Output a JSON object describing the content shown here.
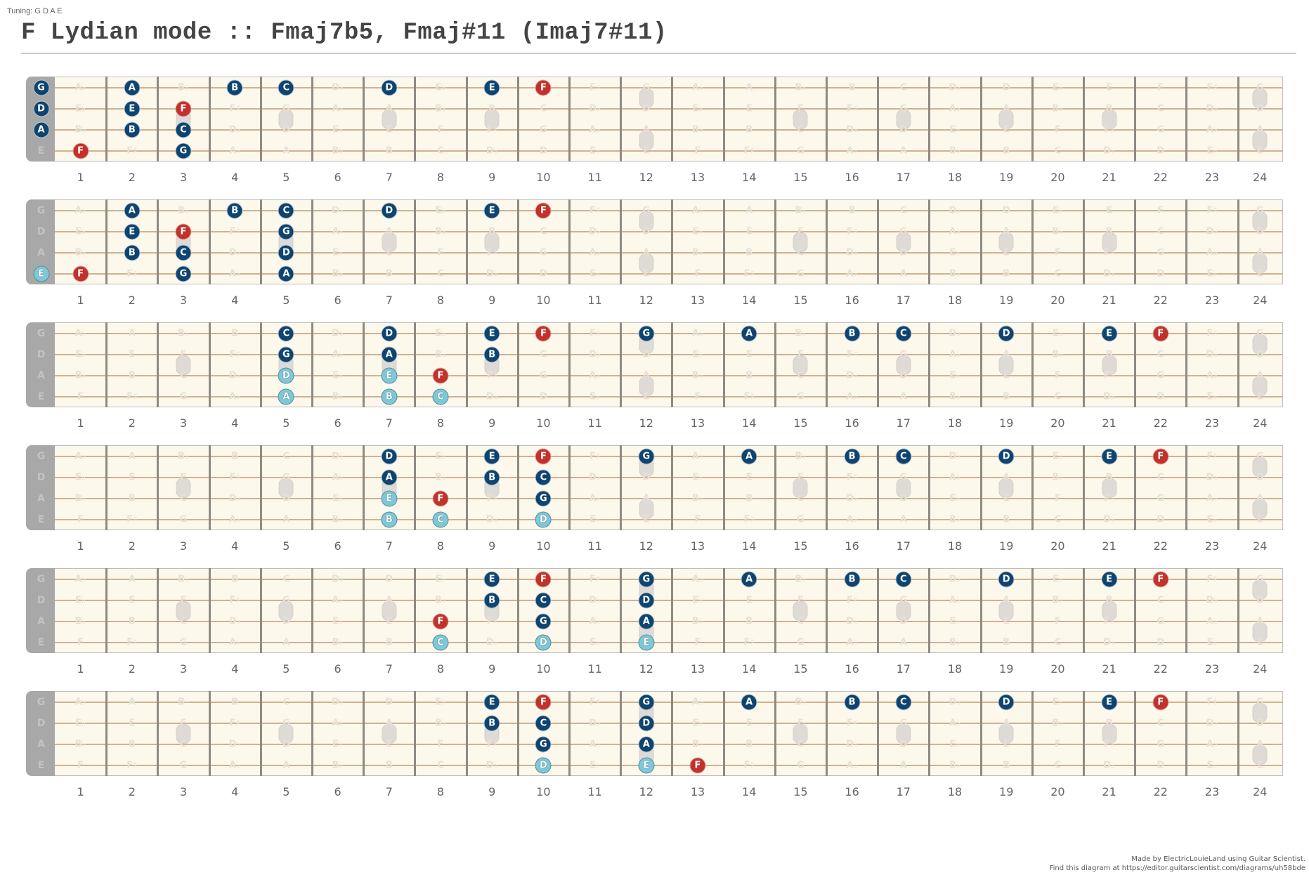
{
  "header": {
    "tuning_label": "Tuning: G D A E",
    "title": "F Lydian mode :: Fmaj7b5, Fmaj#11 (Imaj7#11)"
  },
  "footer": {
    "line1": "Made by ElectricLouieLand using Guitar Scientist.",
    "line2": "Find this diagram at https://editor.guitarscientist.com/diagrams/uh58bde"
  },
  "colors": {
    "scale_note": "#0d4470",
    "root_note": "#c2322b",
    "chord_tone_light": "#7fc8d8",
    "fretboard": "#fdf8ec",
    "string": "#d4b08e",
    "nut": "#a8a8a8"
  },
  "tuning": [
    "G",
    "D",
    "A",
    "E"
  ],
  "fret_numbers": [
    "1",
    "2",
    "3",
    "4",
    "5",
    "6",
    "7",
    "8",
    "9",
    "10",
    "11",
    "12",
    "13",
    "14",
    "15",
    "16",
    "17",
    "18",
    "19",
    "20",
    "21",
    "22",
    "23",
    "24"
  ],
  "inlays": {
    "single": [
      3,
      5,
      7,
      9,
      15,
      17,
      19,
      21
    ],
    "double": [
      12,
      24
    ]
  },
  "ghost_notes": {
    "G": [
      "A♭",
      "A",
      "B♭",
      "B",
      "C",
      "D♭",
      "D",
      "E♭",
      "E",
      "F",
      "F♯",
      "G",
      "A♭",
      "A",
      "B♭",
      "B",
      "C",
      "D♭",
      "D",
      "E♭",
      "E",
      "F",
      "F♯",
      "G"
    ],
    "D": [
      "E♭",
      "E",
      "F",
      "F♯",
      "G",
      "A♭",
      "A",
      "B♭",
      "B",
      "C",
      "D♭",
      "D",
      "E♭",
      "E",
      "F",
      "F♯",
      "G",
      "A♭",
      "A",
      "B♭",
      "B",
      "C",
      "D♭",
      "D"
    ],
    "A": [
      "B♭",
      "B",
      "C",
      "D♭",
      "D",
      "E♭",
      "E",
      "F",
      "F♯",
      "G",
      "A♭",
      "A",
      "B♭",
      "B",
      "C",
      "D♭",
      "D",
      "E♭",
      "E",
      "F",
      "F♯",
      "G",
      "A♭",
      "A"
    ],
    "E": [
      "F",
      "F♯",
      "G",
      "A♭",
      "A",
      "B♭",
      "B",
      "C",
      "D♭",
      "D",
      "E♭",
      "E",
      "F",
      "F♯",
      "G",
      "A♭",
      "A",
      "B♭",
      "B",
      "C",
      "D♭",
      "D",
      "E♭",
      "E"
    ]
  },
  "diagrams": [
    {
      "notes": [
        {
          "string": "G",
          "fret": 0,
          "label": "G",
          "type": "dark"
        },
        {
          "string": "D",
          "fret": 0,
          "label": "D",
          "type": "dark"
        },
        {
          "string": "A",
          "fret": 0,
          "label": "A",
          "type": "dark"
        },
        {
          "string": "G",
          "fret": 2,
          "label": "A",
          "type": "dark"
        },
        {
          "string": "G",
          "fret": 4,
          "label": "B",
          "type": "dark"
        },
        {
          "string": "G",
          "fret": 5,
          "label": "C",
          "type": "dark"
        },
        {
          "string": "G",
          "fret": 7,
          "label": "D",
          "type": "dark"
        },
        {
          "string": "G",
          "fret": 9,
          "label": "E",
          "type": "dark"
        },
        {
          "string": "G",
          "fret": 10,
          "label": "F",
          "type": "root"
        },
        {
          "string": "D",
          "fret": 2,
          "label": "E",
          "type": "dark"
        },
        {
          "string": "D",
          "fret": 3,
          "label": "F",
          "type": "root"
        },
        {
          "string": "A",
          "fret": 2,
          "label": "B",
          "type": "dark"
        },
        {
          "string": "A",
          "fret": 3,
          "label": "C",
          "type": "dark"
        },
        {
          "string": "E",
          "fret": 1,
          "label": "F",
          "type": "root"
        },
        {
          "string": "E",
          "fret": 3,
          "label": "G",
          "type": "dark"
        }
      ]
    },
    {
      "notes": [
        {
          "string": "E",
          "fret": 0,
          "label": "E",
          "type": "light"
        },
        {
          "string": "G",
          "fret": 2,
          "label": "A",
          "type": "dark"
        },
        {
          "string": "G",
          "fret": 4,
          "label": "B",
          "type": "dark"
        },
        {
          "string": "G",
          "fret": 5,
          "label": "C",
          "type": "dark"
        },
        {
          "string": "G",
          "fret": 7,
          "label": "D",
          "type": "dark"
        },
        {
          "string": "G",
          "fret": 9,
          "label": "E",
          "type": "dark"
        },
        {
          "string": "G",
          "fret": 10,
          "label": "F",
          "type": "root"
        },
        {
          "string": "D",
          "fret": 2,
          "label": "E",
          "type": "dark"
        },
        {
          "string": "D",
          "fret": 3,
          "label": "F",
          "type": "root"
        },
        {
          "string": "D",
          "fret": 5,
          "label": "G",
          "type": "dark"
        },
        {
          "string": "A",
          "fret": 2,
          "label": "B",
          "type": "dark"
        },
        {
          "string": "A",
          "fret": 3,
          "label": "C",
          "type": "dark"
        },
        {
          "string": "A",
          "fret": 5,
          "label": "D",
          "type": "dark"
        },
        {
          "string": "E",
          "fret": 1,
          "label": "F",
          "type": "root"
        },
        {
          "string": "E",
          "fret": 3,
          "label": "G",
          "type": "dark"
        },
        {
          "string": "E",
          "fret": 5,
          "label": "A",
          "type": "dark"
        }
      ]
    },
    {
      "notes": [
        {
          "string": "G",
          "fret": 5,
          "label": "C",
          "type": "dark"
        },
        {
          "string": "G",
          "fret": 7,
          "label": "D",
          "type": "dark"
        },
        {
          "string": "G",
          "fret": 9,
          "label": "E",
          "type": "dark"
        },
        {
          "string": "G",
          "fret": 10,
          "label": "F",
          "type": "root"
        },
        {
          "string": "G",
          "fret": 12,
          "label": "G",
          "type": "dark"
        },
        {
          "string": "G",
          "fret": 14,
          "label": "A",
          "type": "dark"
        },
        {
          "string": "G",
          "fret": 16,
          "label": "B",
          "type": "dark"
        },
        {
          "string": "G",
          "fret": 17,
          "label": "C",
          "type": "dark"
        },
        {
          "string": "G",
          "fret": 19,
          "label": "D",
          "type": "dark"
        },
        {
          "string": "G",
          "fret": 21,
          "label": "E",
          "type": "dark"
        },
        {
          "string": "G",
          "fret": 22,
          "label": "F",
          "type": "root"
        },
        {
          "string": "D",
          "fret": 5,
          "label": "G",
          "type": "dark"
        },
        {
          "string": "D",
          "fret": 7,
          "label": "A",
          "type": "dark"
        },
        {
          "string": "D",
          "fret": 9,
          "label": "B",
          "type": "dark"
        },
        {
          "string": "A",
          "fret": 5,
          "label": "D",
          "type": "light"
        },
        {
          "string": "A",
          "fret": 7,
          "label": "E",
          "type": "light"
        },
        {
          "string": "A",
          "fret": 8,
          "label": "F",
          "type": "root"
        },
        {
          "string": "E",
          "fret": 5,
          "label": "A",
          "type": "light"
        },
        {
          "string": "E",
          "fret": 7,
          "label": "B",
          "type": "light"
        },
        {
          "string": "E",
          "fret": 8,
          "label": "C",
          "type": "light"
        }
      ]
    },
    {
      "notes": [
        {
          "string": "G",
          "fret": 7,
          "label": "D",
          "type": "dark"
        },
        {
          "string": "G",
          "fret": 9,
          "label": "E",
          "type": "dark"
        },
        {
          "string": "G",
          "fret": 10,
          "label": "F",
          "type": "root"
        },
        {
          "string": "G",
          "fret": 12,
          "label": "G",
          "type": "dark"
        },
        {
          "string": "G",
          "fret": 14,
          "label": "A",
          "type": "dark"
        },
        {
          "string": "G",
          "fret": 16,
          "label": "B",
          "type": "dark"
        },
        {
          "string": "G",
          "fret": 17,
          "label": "C",
          "type": "dark"
        },
        {
          "string": "G",
          "fret": 19,
          "label": "D",
          "type": "dark"
        },
        {
          "string": "G",
          "fret": 21,
          "label": "E",
          "type": "dark"
        },
        {
          "string": "G",
          "fret": 22,
          "label": "F",
          "type": "root"
        },
        {
          "string": "D",
          "fret": 7,
          "label": "A",
          "type": "dark"
        },
        {
          "string": "D",
          "fret": 9,
          "label": "B",
          "type": "dark"
        },
        {
          "string": "D",
          "fret": 10,
          "label": "C",
          "type": "dark"
        },
        {
          "string": "A",
          "fret": 7,
          "label": "E",
          "type": "light"
        },
        {
          "string": "A",
          "fret": 8,
          "label": "F",
          "type": "root"
        },
        {
          "string": "A",
          "fret": 10,
          "label": "G",
          "type": "dark"
        },
        {
          "string": "E",
          "fret": 7,
          "label": "B",
          "type": "light"
        },
        {
          "string": "E",
          "fret": 8,
          "label": "C",
          "type": "light"
        },
        {
          "string": "E",
          "fret": 10,
          "label": "D",
          "type": "light"
        }
      ]
    },
    {
      "notes": [
        {
          "string": "G",
          "fret": 9,
          "label": "E",
          "type": "dark"
        },
        {
          "string": "G",
          "fret": 10,
          "label": "F",
          "type": "root"
        },
        {
          "string": "G",
          "fret": 12,
          "label": "G",
          "type": "dark"
        },
        {
          "string": "G",
          "fret": 14,
          "label": "A",
          "type": "dark"
        },
        {
          "string": "G",
          "fret": 16,
          "label": "B",
          "type": "dark"
        },
        {
          "string": "G",
          "fret": 17,
          "label": "C",
          "type": "dark"
        },
        {
          "string": "G",
          "fret": 19,
          "label": "D",
          "type": "dark"
        },
        {
          "string": "G",
          "fret": 21,
          "label": "E",
          "type": "dark"
        },
        {
          "string": "G",
          "fret": 22,
          "label": "F",
          "type": "root"
        },
        {
          "string": "D",
          "fret": 9,
          "label": "B",
          "type": "dark"
        },
        {
          "string": "D",
          "fret": 10,
          "label": "C",
          "type": "dark"
        },
        {
          "string": "D",
          "fret": 12,
          "label": "D",
          "type": "dark"
        },
        {
          "string": "A",
          "fret": 8,
          "label": "F",
          "type": "root"
        },
        {
          "string": "A",
          "fret": 10,
          "label": "G",
          "type": "dark"
        },
        {
          "string": "A",
          "fret": 12,
          "label": "A",
          "type": "dark"
        },
        {
          "string": "E",
          "fret": 8,
          "label": "C",
          "type": "light"
        },
        {
          "string": "E",
          "fret": 10,
          "label": "D",
          "type": "light"
        },
        {
          "string": "E",
          "fret": 12,
          "label": "E",
          "type": "light"
        }
      ]
    },
    {
      "notes": [
        {
          "string": "G",
          "fret": 9,
          "label": "E",
          "type": "dark"
        },
        {
          "string": "G",
          "fret": 10,
          "label": "F",
          "type": "root"
        },
        {
          "string": "G",
          "fret": 12,
          "label": "G",
          "type": "dark"
        },
        {
          "string": "G",
          "fret": 14,
          "label": "A",
          "type": "dark"
        },
        {
          "string": "G",
          "fret": 16,
          "label": "B",
          "type": "dark"
        },
        {
          "string": "G",
          "fret": 17,
          "label": "C",
          "type": "dark"
        },
        {
          "string": "G",
          "fret": 19,
          "label": "D",
          "type": "dark"
        },
        {
          "string": "G",
          "fret": 21,
          "label": "E",
          "type": "dark"
        },
        {
          "string": "G",
          "fret": 22,
          "label": "F",
          "type": "root"
        },
        {
          "string": "D",
          "fret": 9,
          "label": "B",
          "type": "dark"
        },
        {
          "string": "D",
          "fret": 10,
          "label": "C",
          "type": "dark"
        },
        {
          "string": "D",
          "fret": 12,
          "label": "D",
          "type": "dark"
        },
        {
          "string": "A",
          "fret": 10,
          "label": "G",
          "type": "dark"
        },
        {
          "string": "A",
          "fret": 12,
          "label": "A",
          "type": "dark"
        },
        {
          "string": "E",
          "fret": 10,
          "label": "D",
          "type": "light"
        },
        {
          "string": "E",
          "fret": 12,
          "label": "E",
          "type": "light"
        },
        {
          "string": "E",
          "fret": 13,
          "label": "F",
          "type": "root"
        }
      ]
    }
  ]
}
